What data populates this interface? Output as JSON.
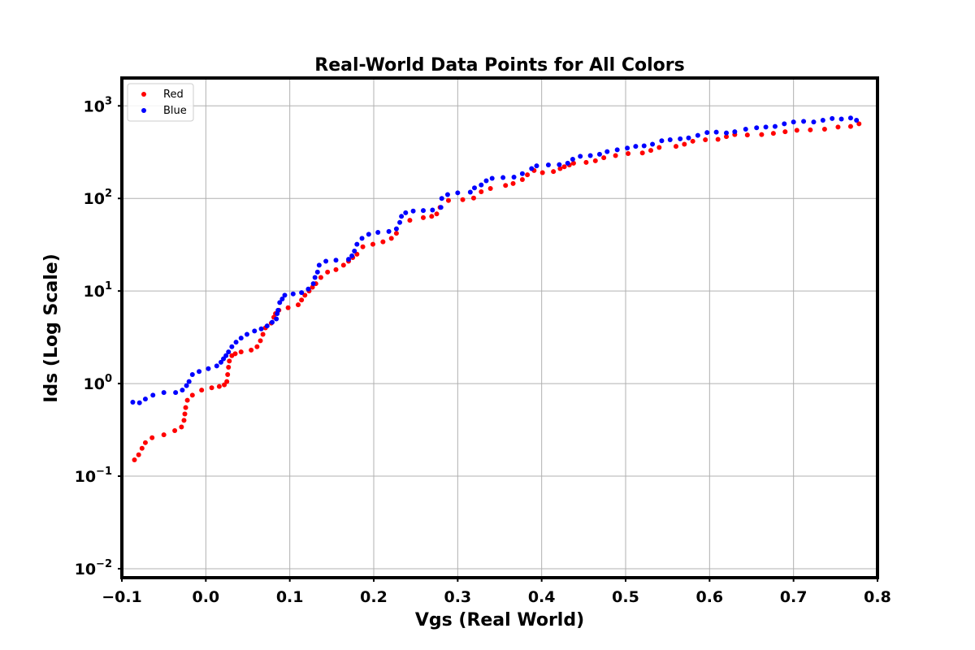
{
  "chart_data": {
    "type": "scatter",
    "title": "Real-World Data Points for All Colors",
    "xlabel": "Vgs (Real World)",
    "ylabel": "Ids (Log Scale)",
    "xlim": [
      -0.1,
      0.8
    ],
    "ylim": [
      0.008,
      2000
    ],
    "y_scale": "log",
    "grid": true,
    "legend_position": "top-left",
    "x_ticks": [
      {
        "value": -0.1,
        "label": "−0.1"
      },
      {
        "value": 0.0,
        "label": "0.0"
      },
      {
        "value": 0.1,
        "label": "0.1"
      },
      {
        "value": 0.2,
        "label": "0.2"
      },
      {
        "value": 0.3,
        "label": "0.3"
      },
      {
        "value": 0.4,
        "label": "0.4"
      },
      {
        "value": 0.5,
        "label": "0.5"
      },
      {
        "value": 0.6,
        "label": "0.6"
      },
      {
        "value": 0.7,
        "label": "0.7"
      },
      {
        "value": 0.8,
        "label": "0.8"
      }
    ],
    "y_ticks": [
      {
        "value": 0.01,
        "base": "10",
        "exp": "−2"
      },
      {
        "value": 0.1,
        "base": "10",
        "exp": "−1"
      },
      {
        "value": 1,
        "base": "10",
        "exp": "0"
      },
      {
        "value": 10,
        "base": "10",
        "exp": "1"
      },
      {
        "value": 100,
        "base": "10",
        "exp": "2"
      },
      {
        "value": 1000,
        "base": "10",
        "exp": "3"
      }
    ],
    "series": [
      {
        "name": "Red",
        "color": "#ff0000",
        "points": [
          [
            -0.085,
            0.15
          ],
          [
            -0.08,
            0.17
          ],
          [
            -0.076,
            0.2
          ],
          [
            -0.072,
            0.23
          ],
          [
            -0.064,
            0.26
          ],
          [
            -0.05,
            0.28
          ],
          [
            -0.037,
            0.31
          ],
          [
            -0.029,
            0.34
          ],
          [
            -0.026,
            0.4
          ],
          [
            -0.025,
            0.47
          ],
          [
            -0.024,
            0.55
          ],
          [
            -0.022,
            0.66
          ],
          [
            -0.016,
            0.75
          ],
          [
            -0.005,
            0.85
          ],
          [
            0.007,
            0.9
          ],
          [
            0.016,
            0.93
          ],
          [
            0.022,
            0.97
          ],
          [
            0.025,
            1.05
          ],
          [
            0.026,
            1.25
          ],
          [
            0.027,
            1.5
          ],
          [
            0.028,
            1.75
          ],
          [
            0.031,
            2.0
          ],
          [
            0.035,
            2.1
          ],
          [
            0.042,
            2.2
          ],
          [
            0.054,
            2.3
          ],
          [
            0.061,
            2.5
          ],
          [
            0.065,
            2.9
          ],
          [
            0.068,
            3.4
          ],
          [
            0.071,
            4.0
          ],
          [
            0.078,
            4.5
          ],
          [
            0.081,
            5.2
          ],
          [
            0.083,
            5.7
          ],
          [
            0.087,
            6.2
          ],
          [
            0.098,
            6.6
          ],
          [
            0.11,
            7.1
          ],
          [
            0.114,
            8.0
          ],
          [
            0.118,
            9.0
          ],
          [
            0.123,
            10.0
          ],
          [
            0.127,
            11.0
          ],
          [
            0.131,
            12.0
          ],
          [
            0.137,
            14.0
          ],
          [
            0.145,
            16.0
          ],
          [
            0.155,
            17.0
          ],
          [
            0.164,
            19.0
          ],
          [
            0.17,
            21.0
          ],
          [
            0.175,
            23.0
          ],
          [
            0.18,
            25.0
          ],
          [
            0.187,
            30.0
          ],
          [
            0.199,
            32.0
          ],
          [
            0.211,
            34.0
          ],
          [
            0.221,
            37.0
          ],
          [
            0.227,
            42.0
          ],
          [
            0.243,
            58.0
          ],
          [
            0.259,
            62.0
          ],
          [
            0.269,
            64.0
          ],
          [
            0.275,
            68.0
          ],
          [
            0.279,
            80.0
          ],
          [
            0.289,
            95.0
          ],
          [
            0.306,
            97.0
          ],
          [
            0.319,
            101.0
          ],
          [
            0.328,
            118.0
          ],
          [
            0.339,
            128.0
          ],
          [
            0.357,
            138.0
          ],
          [
            0.366,
            145.0
          ],
          [
            0.377,
            160.0
          ],
          [
            0.383,
            180.0
          ],
          [
            0.391,
            200.0
          ],
          [
            0.401,
            190.0
          ],
          [
            0.414,
            195.0
          ],
          [
            0.422,
            210.0
          ],
          [
            0.427,
            220.0
          ],
          [
            0.433,
            230.0
          ],
          [
            0.438,
            240.0
          ],
          [
            0.453,
            245.0
          ],
          [
            0.464,
            255.0
          ],
          [
            0.474,
            275.0
          ],
          [
            0.488,
            290.0
          ],
          [
            0.503,
            305.0
          ],
          [
            0.52,
            310.0
          ],
          [
            0.53,
            330.0
          ],
          [
            0.54,
            355.0
          ],
          [
            0.56,
            365.0
          ],
          [
            0.57,
            385.0
          ],
          [
            0.58,
            415.0
          ],
          [
            0.595,
            430.0
          ],
          [
            0.61,
            435.0
          ],
          [
            0.62,
            465.0
          ],
          [
            0.63,
            490.0
          ],
          [
            0.645,
            485.0
          ],
          [
            0.662,
            490.0
          ],
          [
            0.676,
            505.0
          ],
          [
            0.69,
            525.0
          ],
          [
            0.704,
            545.0
          ],
          [
            0.72,
            550.0
          ],
          [
            0.737,
            560.0
          ],
          [
            0.753,
            590.0
          ],
          [
            0.768,
            600.0
          ],
          [
            0.778,
            640.0
          ]
        ]
      },
      {
        "name": "Blue",
        "color": "#0000ff",
        "points": [
          [
            -0.087,
            0.63
          ],
          [
            -0.079,
            0.62
          ],
          [
            -0.072,
            0.68
          ],
          [
            -0.063,
            0.75
          ],
          [
            -0.05,
            0.8
          ],
          [
            -0.036,
            0.8
          ],
          [
            -0.028,
            0.85
          ],
          [
            -0.023,
            0.95
          ],
          [
            -0.02,
            1.05
          ],
          [
            -0.016,
            1.25
          ],
          [
            -0.008,
            1.35
          ],
          [
            0.003,
            1.45
          ],
          [
            0.013,
            1.55
          ],
          [
            0.018,
            1.7
          ],
          [
            0.021,
            1.85
          ],
          [
            0.024,
            2.0
          ],
          [
            0.027,
            2.2
          ],
          [
            0.031,
            2.5
          ],
          [
            0.036,
            2.8
          ],
          [
            0.042,
            3.1
          ],
          [
            0.049,
            3.4
          ],
          [
            0.058,
            3.7
          ],
          [
            0.066,
            3.9
          ],
          [
            0.073,
            4.2
          ],
          [
            0.079,
            4.6
          ],
          [
            0.084,
            5.0
          ],
          [
            0.085,
            5.7
          ],
          [
            0.086,
            6.2
          ],
          [
            0.088,
            7.5
          ],
          [
            0.091,
            8.2
          ],
          [
            0.094,
            9.0
          ],
          [
            0.104,
            9.3
          ],
          [
            0.114,
            9.6
          ],
          [
            0.122,
            10.5
          ],
          [
            0.128,
            12.0
          ],
          [
            0.13,
            14.0
          ],
          [
            0.133,
            16.0
          ],
          [
            0.135,
            19.0
          ],
          [
            0.143,
            21.0
          ],
          [
            0.155,
            21.5
          ],
          [
            0.17,
            22.0
          ],
          [
            0.174,
            24.0
          ],
          [
            0.177,
            27.0
          ],
          [
            0.18,
            32.0
          ],
          [
            0.186,
            37.0
          ],
          [
            0.194,
            41.0
          ],
          [
            0.205,
            43.0
          ],
          [
            0.218,
            44.0
          ],
          [
            0.227,
            47.0
          ],
          [
            0.231,
            55.0
          ],
          [
            0.233,
            64.0
          ],
          [
            0.238,
            70.0
          ],
          [
            0.247,
            73.0
          ],
          [
            0.259,
            74.0
          ],
          [
            0.27,
            75.0
          ],
          [
            0.28,
            80.0
          ],
          [
            0.281,
            100.0
          ],
          [
            0.288,
            110.0
          ],
          [
            0.3,
            115.0
          ],
          [
            0.315,
            117.0
          ],
          [
            0.32,
            130.0
          ],
          [
            0.328,
            140.0
          ],
          [
            0.334,
            155.0
          ],
          [
            0.341,
            165.0
          ],
          [
            0.354,
            168.0
          ],
          [
            0.367,
            170.0
          ],
          [
            0.377,
            185.0
          ],
          [
            0.388,
            210.0
          ],
          [
            0.394,
            225.0
          ],
          [
            0.408,
            230.0
          ],
          [
            0.421,
            232.0
          ],
          [
            0.431,
            240.0
          ],
          [
            0.437,
            265.0
          ],
          [
            0.446,
            285.0
          ],
          [
            0.458,
            290.0
          ],
          [
            0.469,
            300.0
          ],
          [
            0.478,
            320.0
          ],
          [
            0.49,
            335.0
          ],
          [
            0.502,
            350.0
          ],
          [
            0.512,
            365.0
          ],
          [
            0.522,
            370.0
          ],
          [
            0.532,
            385.0
          ],
          [
            0.543,
            420.0
          ],
          [
            0.553,
            430.0
          ],
          [
            0.565,
            440.0
          ],
          [
            0.575,
            450.0
          ],
          [
            0.586,
            480.0
          ],
          [
            0.597,
            515.0
          ],
          [
            0.608,
            520.0
          ],
          [
            0.62,
            510.0
          ],
          [
            0.63,
            525.0
          ],
          [
            0.643,
            560.0
          ],
          [
            0.656,
            580.0
          ],
          [
            0.667,
            590.0
          ],
          [
            0.678,
            600.0
          ],
          [
            0.689,
            640.0
          ],
          [
            0.7,
            670.0
          ],
          [
            0.712,
            680.0
          ],
          [
            0.724,
            670.0
          ],
          [
            0.735,
            700.0
          ],
          [
            0.746,
            730.0
          ],
          [
            0.757,
            720.0
          ],
          [
            0.768,
            740.0
          ],
          [
            0.775,
            700.0
          ]
        ]
      }
    ]
  }
}
